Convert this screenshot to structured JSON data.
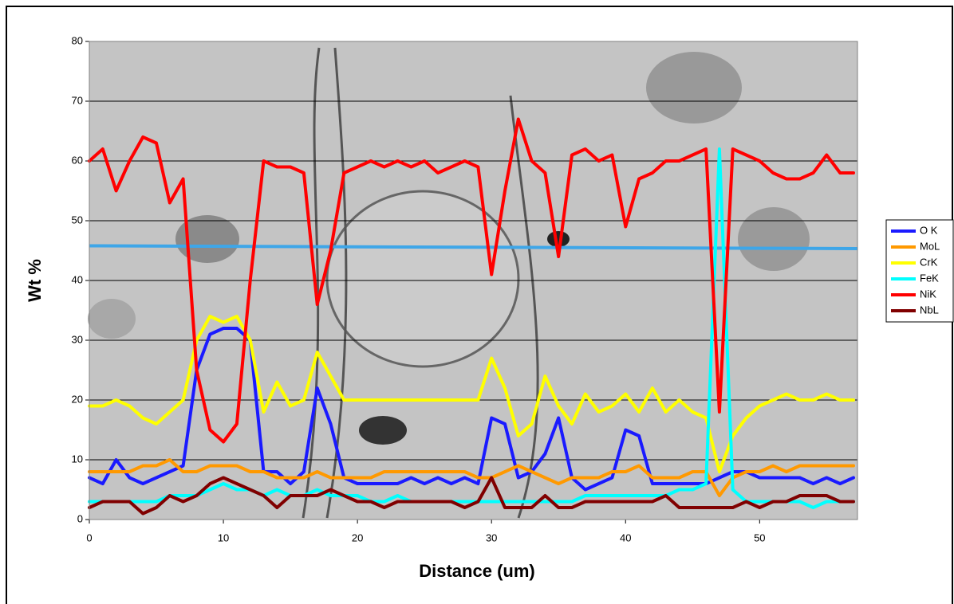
{
  "chart_data": {
    "type": "line",
    "xlabel": "Distance (um)",
    "ylabel": "Wt %",
    "x": [
      0,
      1,
      2,
      3,
      4,
      5,
      6,
      7,
      8,
      9,
      10,
      11,
      12,
      13,
      14,
      15,
      16,
      17,
      18,
      19,
      20,
      21,
      22,
      23,
      24,
      25,
      26,
      27,
      28,
      29,
      30,
      31,
      32,
      33,
      34,
      35,
      36,
      37,
      38,
      39,
      40,
      41,
      42,
      43,
      44,
      45,
      46,
      47,
      48,
      49,
      50,
      51,
      52,
      53,
      54,
      55,
      56,
      57
    ],
    "xlim": [
      0,
      57.3
    ],
    "xticks": [
      0,
      10,
      20,
      30,
      40,
      50
    ],
    "ylim": [
      0,
      80
    ],
    "yticks": [
      0,
      10,
      20,
      30,
      40,
      50,
      60,
      70,
      80
    ],
    "grid": true,
    "legend": "right",
    "series": [
      {
        "name": "O K",
        "color": "#1a1aff",
        "values": [
          7,
          6,
          10,
          7,
          6,
          7,
          8,
          9,
          25,
          31,
          32,
          32,
          30,
          8,
          8,
          6,
          8,
          22,
          16,
          7,
          6,
          6,
          6,
          6,
          7,
          6,
          7,
          6,
          7,
          6,
          17,
          16,
          7,
          8,
          11,
          17,
          7,
          5,
          6,
          7,
          15,
          14,
          6,
          6,
          6,
          6,
          6,
          7,
          8,
          8,
          7,
          7,
          7,
          7,
          6,
          7,
          6,
          7
        ]
      },
      {
        "name": "MoL",
        "color": "#ff9900",
        "values": [
          8,
          8,
          8,
          8,
          9,
          9,
          10,
          8,
          8,
          9,
          9,
          9,
          8,
          8,
          7,
          7,
          7,
          8,
          7,
          7,
          7,
          7,
          8,
          8,
          8,
          8,
          8,
          8,
          8,
          7,
          7,
          8,
          9,
          8,
          7,
          6,
          7,
          7,
          7,
          8,
          8,
          9,
          7,
          7,
          7,
          8,
          8,
          4,
          7,
          8,
          8,
          9,
          8,
          9,
          9,
          9,
          9,
          9
        ]
      },
      {
        "name": "CrK",
        "color": "#ffff00",
        "values": [
          19,
          19,
          20,
          19,
          17,
          16,
          18,
          20,
          30,
          34,
          33,
          34,
          30,
          18,
          23,
          19,
          20,
          28,
          24,
          20,
          20,
          20,
          20,
          20,
          20,
          20,
          20,
          20,
          20,
          20,
          27,
          22,
          14,
          16,
          24,
          19,
          16,
          21,
          18,
          19,
          21,
          18,
          22,
          18,
          20,
          18,
          17,
          8,
          14,
          17,
          19,
          20,
          21,
          20,
          20,
          21,
          20,
          20
        ]
      },
      {
        "name": "FeK",
        "color": "#00ffff",
        "values": [
          3,
          3,
          3,
          3,
          3,
          3,
          4,
          4,
          4,
          5,
          6,
          5,
          5,
          4,
          5,
          4,
          4,
          5,
          4,
          4,
          4,
          3,
          3,
          4,
          3,
          3,
          3,
          3,
          3,
          3,
          3,
          3,
          3,
          3,
          3,
          3,
          3,
          4,
          4,
          4,
          4,
          4,
          4,
          4,
          5,
          5,
          6,
          62,
          5,
          3,
          3,
          3,
          3,
          3,
          2,
          3,
          3,
          3
        ]
      },
      {
        "name": "NiK",
        "color": "#ff0000",
        "values": [
          60,
          62,
          55,
          60,
          64,
          63,
          53,
          57,
          25,
          15,
          13,
          16,
          40,
          60,
          59,
          59,
          58,
          36,
          45,
          58,
          59,
          60,
          59,
          60,
          59,
          60,
          58,
          59,
          60,
          59,
          41,
          55,
          67,
          60,
          58,
          44,
          61,
          62,
          60,
          61,
          49,
          57,
          58,
          60,
          60,
          61,
          62,
          18,
          62,
          61,
          60,
          58,
          57,
          57,
          58,
          61,
          58,
          58
        ]
      },
      {
        "name": "NbL",
        "color": "#800000",
        "values": [
          2,
          3,
          3,
          3,
          1,
          2,
          4,
          3,
          4,
          6,
          7,
          6,
          5,
          4,
          2,
          4,
          4,
          4,
          5,
          4,
          3,
          3,
          2,
          3,
          3,
          3,
          3,
          3,
          2,
          3,
          7,
          2,
          2,
          2,
          4,
          2,
          2,
          3,
          3,
          3,
          3,
          3,
          3,
          4,
          2,
          2,
          2,
          2,
          2,
          3,
          2,
          3,
          3,
          4,
          4,
          4,
          3,
          3
        ]
      }
    ]
  }
}
